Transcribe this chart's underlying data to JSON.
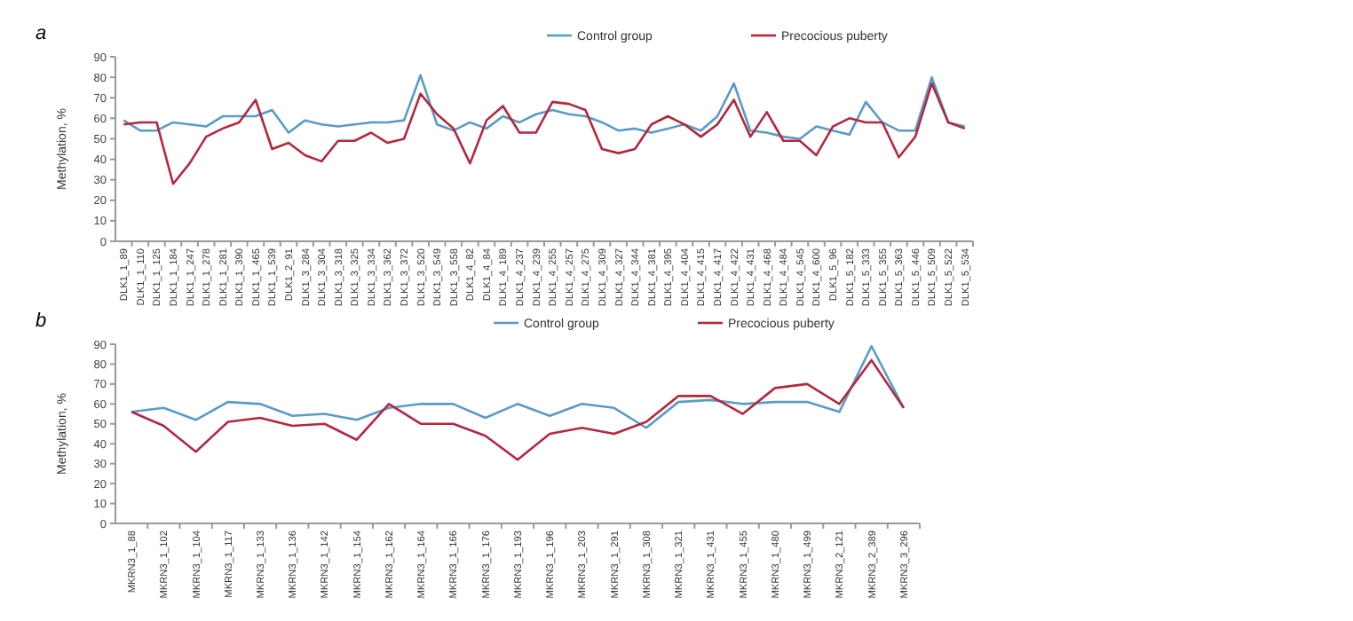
{
  "chart_data": [
    {
      "type": "line",
      "title": "a",
      "ylabel": "Methylation, %",
      "legend": "top right",
      "ylim": [
        0,
        90
      ],
      "yticks": [
        0,
        10,
        20,
        30,
        40,
        50,
        60,
        70,
        80,
        90
      ],
      "categories": [
        "DLK1_1_89",
        "DLK1_1_110",
        "DLK1_1_125",
        "DLK1_1_184",
        "DLK1_1_247",
        "DLK1_1_278",
        "DLK1_1_281",
        "DLK1_1_390",
        "DLK1_1_465",
        "DLK1_1_539",
        "DLK1_2_91",
        "DLK1_3_284",
        "DLK1_3_304",
        "DLK1_3_318",
        "DLK1_3_325",
        "DLK1_3_334",
        "DLK1_3_362",
        "DLK1_3_372",
        "DLK1_3_520",
        "DLK1_3_549",
        "DLK1_3_558",
        "DLK1_4_82",
        "DLK1_4_84",
        "DLK1_4_189",
        "DLK1_4_237",
        "DLK1_4_239",
        "DLK1_4_255",
        "DLK1_4_257",
        "DLK1_4_275",
        "DLK1_4_309",
        "DLK1_4_327",
        "DLK1_4_344",
        "DLK1_4_381",
        "DLK1_4_395",
        "DLK1_4_404",
        "DLK1_4_415",
        "DLK1_4_417",
        "DLK1_4_422",
        "DLK1_4_431",
        "DLK1_4_468",
        "DLK1_4_484",
        "DLK1_4_545",
        "DLK1_4_600",
        "DLK1_5_96",
        "DLK1_5_182",
        "DLK1_5_333",
        "DLK1_5_355",
        "DLK1_5_363",
        "DLK1_5_446",
        "DLK1_5_509",
        "DLK1_5_522",
        "DLK1_5_534"
      ],
      "series": [
        {
          "name": "Control group",
          "color": "#5a9bc6",
          "values": [
            59,
            54,
            54,
            58,
            57,
            56,
            61,
            61,
            61,
            64,
            53,
            59,
            57,
            56,
            57,
            58,
            58,
            59,
            81,
            57,
            54,
            58,
            55,
            61,
            58,
            62,
            64,
            62,
            61,
            58,
            54,
            55,
            53,
            55,
            57,
            54,
            61,
            77,
            54,
            53,
            51,
            50,
            56,
            54,
            52,
            68,
            58,
            54,
            54,
            80,
            58,
            56
          ]
        },
        {
          "name": "Precocious puberty",
          "color": "#b3283f",
          "values": [
            57,
            58,
            58,
            28,
            38,
            51,
            55,
            58,
            69,
            45,
            48,
            42,
            39,
            49,
            49,
            53,
            48,
            50,
            72,
            62,
            55,
            38,
            59,
            66,
            53,
            53,
            68,
            67,
            64,
            45,
            43,
            45,
            57,
            61,
            57,
            51,
            57,
            69,
            51,
            63,
            49,
            49,
            42,
            56,
            60,
            58,
            58,
            41,
            51,
            77,
            58,
            55
          ]
        }
      ]
    },
    {
      "type": "line",
      "title": "b",
      "ylabel": "Methylation, %",
      "legend": "top right",
      "ylim": [
        0,
        90
      ],
      "yticks": [
        0,
        10,
        20,
        30,
        40,
        50,
        60,
        70,
        80,
        90
      ],
      "categories": [
        "MKRN3_1_88",
        "MKRN3_1_102",
        "MKRN3_1_104",
        "MKRN3_1_117",
        "MKRN3_1_133",
        "MKRN3_1_136",
        "MKRN3_1_142",
        "MKRN3_1_154",
        "MKRN3_1_162",
        "MKRN3_1_164",
        "MKRN3_1_166",
        "MKRN3_1_176",
        "MKRN3_1_193",
        "MKRN3_1_196",
        "MKRN3_1_203",
        "MKRN3_1_291",
        "MKRN3_1_308",
        "MKRN3_1_321",
        "MKRN3_1_431",
        "MKRN3_1_455",
        "MKRN3_1_480",
        "MKRN3_1_499",
        "MKRN3_2_121",
        "MKRN3_2_389",
        "MKRN3_3_296"
      ],
      "series": [
        {
          "name": "Control group",
          "color": "#5a9bc6",
          "values": [
            56,
            58,
            52,
            61,
            60,
            54,
            55,
            52,
            58,
            60,
            60,
            53,
            60,
            54,
            60,
            58,
            48,
            61,
            62,
            60,
            61,
            61,
            56,
            89,
            58
          ]
        },
        {
          "name": "Precocious puberty",
          "color": "#b3283f",
          "values": [
            56,
            49,
            36,
            51,
            53,
            49,
            50,
            42,
            60,
            50,
            50,
            44,
            32,
            45,
            48,
            45,
            51,
            64,
            64,
            55,
            68,
            70,
            60,
            82,
            58
          ]
        }
      ]
    }
  ]
}
